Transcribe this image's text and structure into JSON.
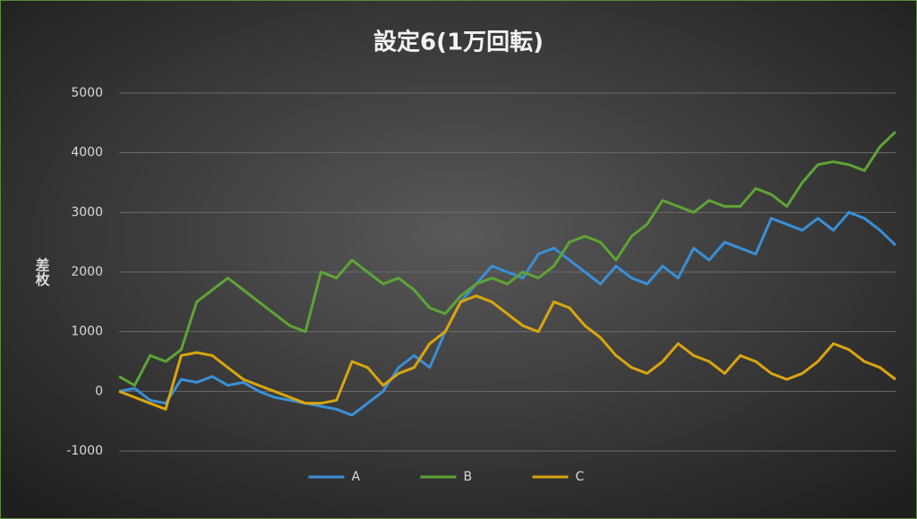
{
  "chart_data": {
    "type": "line",
    "title": "設定6(1万回転)",
    "y_label": "差枚",
    "ylim": [
      -1000,
      5000
    ],
    "yticks": [
      -1000,
      0,
      1000,
      2000,
      3000,
      4000,
      5000
    ],
    "grid": true,
    "legend": "bottom",
    "series": [
      {
        "name": "A",
        "color": "#3a8fd6",
        "values": [
          0,
          50,
          -150,
          -200,
          200,
          150,
          250,
          100,
          150,
          0,
          -100,
          -150,
          -200,
          -250,
          -300,
          -400,
          -200,
          0,
          400,
          600,
          400,
          1000,
          1500,
          1800,
          2100,
          2000,
          1900,
          2300,
          2400,
          2200,
          2000,
          1800,
          2100,
          1900,
          1800,
          2100,
          1900,
          2400,
          2200,
          2500,
          2400,
          2300,
          2900,
          2800,
          2700,
          2900,
          2700,
          3000,
          2900,
          2700,
          2450
        ]
      },
      {
        "name": "B",
        "color": "#5fa336",
        "values": [
          250,
          100,
          600,
          500,
          700,
          1500,
          1700,
          1900,
          1700,
          1500,
          1300,
          1100,
          1000,
          2000,
          1900,
          2200,
          2000,
          1800,
          1900,
          1700,
          1400,
          1300,
          1600,
          1800,
          1900,
          1800,
          2000,
          1900,
          2100,
          2500,
          2600,
          2500,
          2200,
          2600,
          2800,
          3200,
          3100,
          3000,
          3200,
          3100,
          3100,
          3400,
          3300,
          3100,
          3500,
          3800,
          3850,
          3800,
          3700,
          4100,
          4350
        ]
      },
      {
        "name": "C",
        "color": "#d9a50e",
        "values": [
          0,
          -100,
          -200,
          -300,
          600,
          650,
          600,
          400,
          200,
          100,
          0,
          -100,
          -200,
          -200,
          -150,
          500,
          400,
          100,
          300,
          400,
          800,
          1000,
          1500,
          1600,
          1500,
          1300,
          1100,
          1000,
          1500,
          1400,
          1100,
          900,
          600,
          400,
          300,
          500,
          800,
          600,
          500,
          300,
          600,
          500,
          300,
          200,
          300,
          500,
          800,
          700,
          500,
          400,
          200
        ]
      }
    ]
  }
}
